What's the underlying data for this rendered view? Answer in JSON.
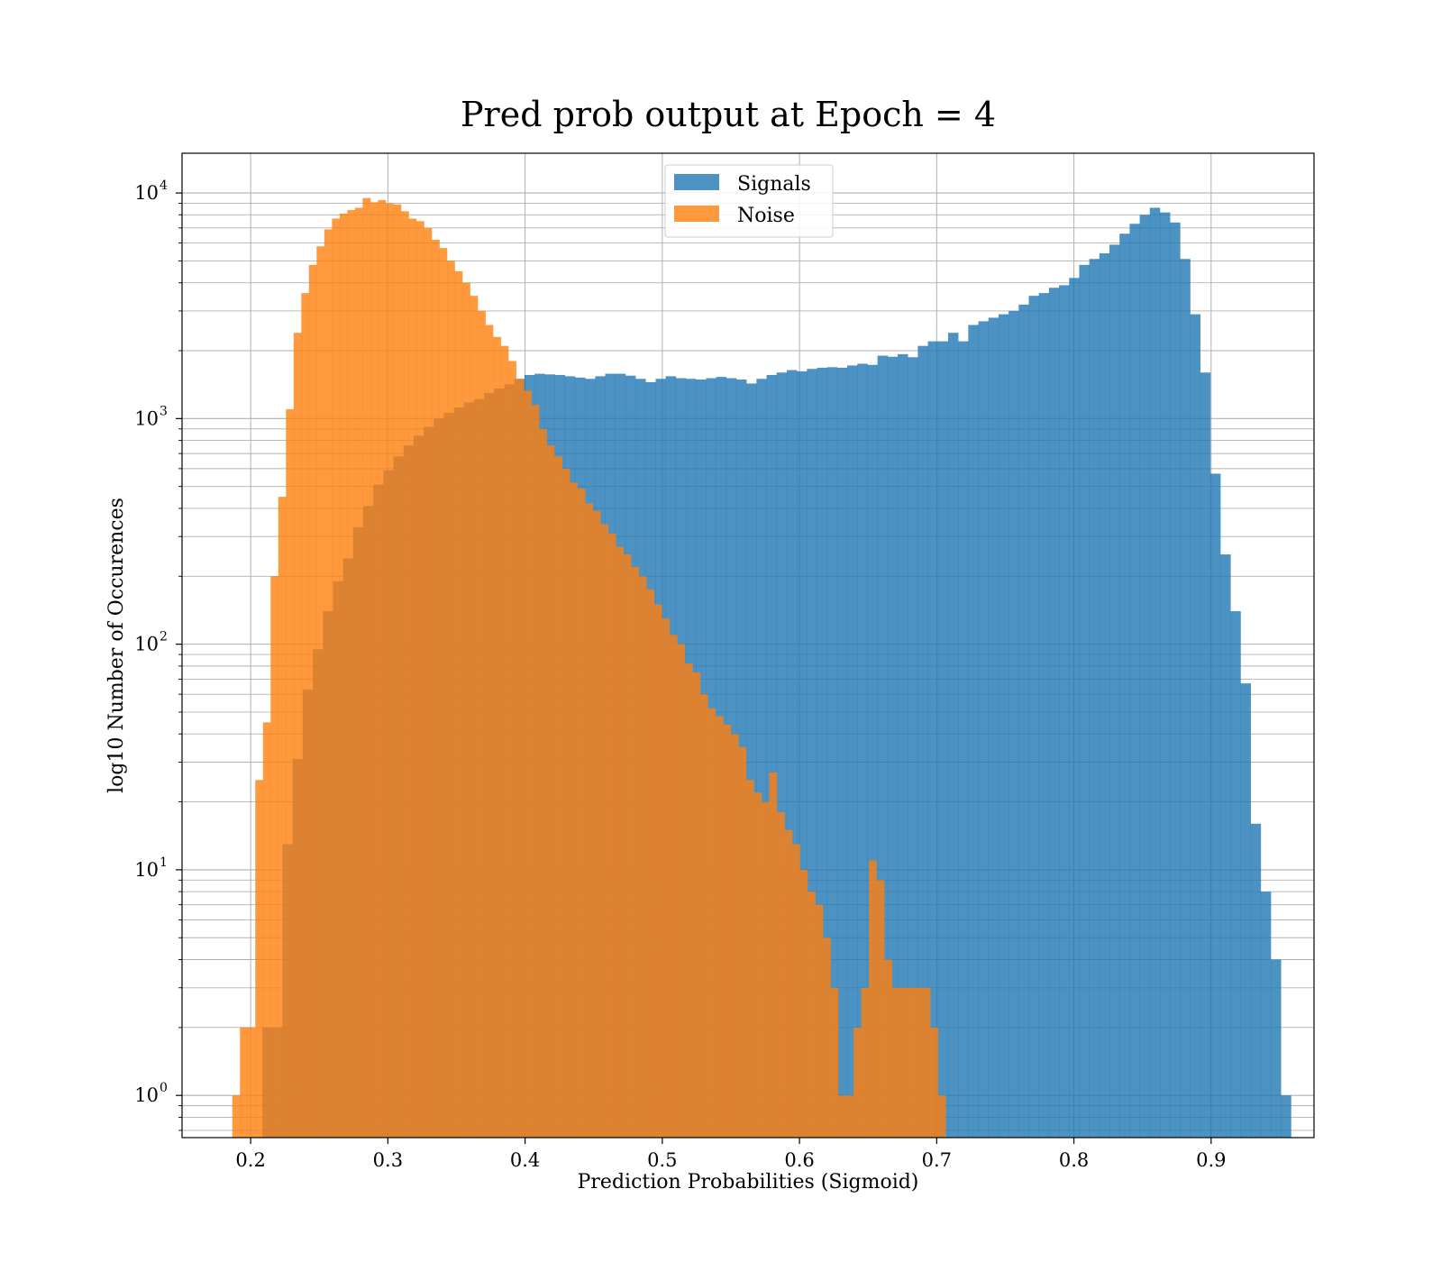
{
  "chart_data": {
    "type": "bar",
    "title": "Pred prob output at Epoch = 4",
    "xlabel": "Prediction Probabilities (Sigmoid)",
    "ylabel": "log10 Number of Occurences",
    "xlim": [
      0.15,
      0.975
    ],
    "ylim": [
      0.65,
      15000
    ],
    "yscale": "log",
    "grid": true,
    "legend_position": "top-center",
    "x_ticks": [
      0.2,
      0.3,
      0.4,
      0.5,
      0.6,
      0.7,
      0.8,
      0.9
    ],
    "x_tick_labels": [
      "0.2",
      "0.3",
      "0.4",
      "0.5",
      "0.6",
      "0.7",
      "0.8",
      "0.9"
    ],
    "y_ticks": [
      {
        "value": 1,
        "base": "10",
        "exp": "0"
      },
      {
        "value": 10,
        "base": "10",
        "exp": "1"
      },
      {
        "value": 100,
        "base": "10",
        "exp": "2"
      },
      {
        "value": 1000,
        "base": "10",
        "exp": "3"
      },
      {
        "value": 10000,
        "base": "10",
        "exp": "4"
      }
    ],
    "series": [
      {
        "name": "Signals",
        "color": "#1f77b4",
        "opacity": 0.8,
        "bin_start": 0.2085,
        "bin_width": 0.00735,
        "values": [
          2,
          2,
          13,
          31,
          63,
          95,
          140,
          190,
          240,
          330,
          410,
          510,
          590,
          680,
          760,
          840,
          920,
          1000,
          1060,
          1120,
          1180,
          1220,
          1300,
          1360,
          1420,
          1500,
          1560,
          1580,
          1570,
          1560,
          1540,
          1520,
          1500,
          1540,
          1580,
          1580,
          1550,
          1500,
          1450,
          1500,
          1540,
          1510,
          1500,
          1490,
          1510,
          1530,
          1510,
          1490,
          1430,
          1500,
          1560,
          1600,
          1640,
          1620,
          1660,
          1680,
          1690,
          1680,
          1720,
          1750,
          1730,
          1900,
          1880,
          1930,
          1870,
          2100,
          2200,
          2200,
          2400,
          2200,
          2600,
          2700,
          2800,
          2900,
          3000,
          3200,
          3500,
          3600,
          3800,
          3900,
          4200,
          4800,
          5100,
          5400,
          5900,
          6600,
          7300,
          8000,
          8600,
          8200,
          7400,
          5100,
          2900,
          1600,
          570,
          250,
          140,
          67,
          16,
          8,
          4,
          1
        ]
      },
      {
        "name": "Noise",
        "color": "#ff7f0e",
        "opacity": 0.8,
        "bin_start": 0.1866,
        "bin_width": 0.00559,
        "values": [
          1,
          2,
          2,
          25,
          45,
          200,
          450,
          1100,
          2400,
          3600,
          4800,
          5800,
          6900,
          7700,
          8100,
          8400,
          8600,
          9500,
          9100,
          9300,
          9000,
          8900,
          8300,
          7700,
          7500,
          7000,
          6200,
          5700,
          5000,
          4500,
          4000,
          3500,
          3000,
          2600,
          2300,
          2100,
          1800,
          1500,
          1330,
          1150,
          900,
          760,
          680,
          600,
          520,
          490,
          420,
          390,
          340,
          310,
          270,
          250,
          220,
          200,
          175,
          150,
          130,
          110,
          100,
          82,
          75,
          60,
          52,
          48,
          44,
          40,
          35,
          25,
          22,
          20,
          27,
          18,
          15,
          13,
          10,
          8,
          7,
          5,
          3,
          1,
          1,
          2,
          3,
          11,
          9,
          4,
          3,
          3,
          3,
          3,
          3,
          2,
          1
        ]
      }
    ]
  }
}
